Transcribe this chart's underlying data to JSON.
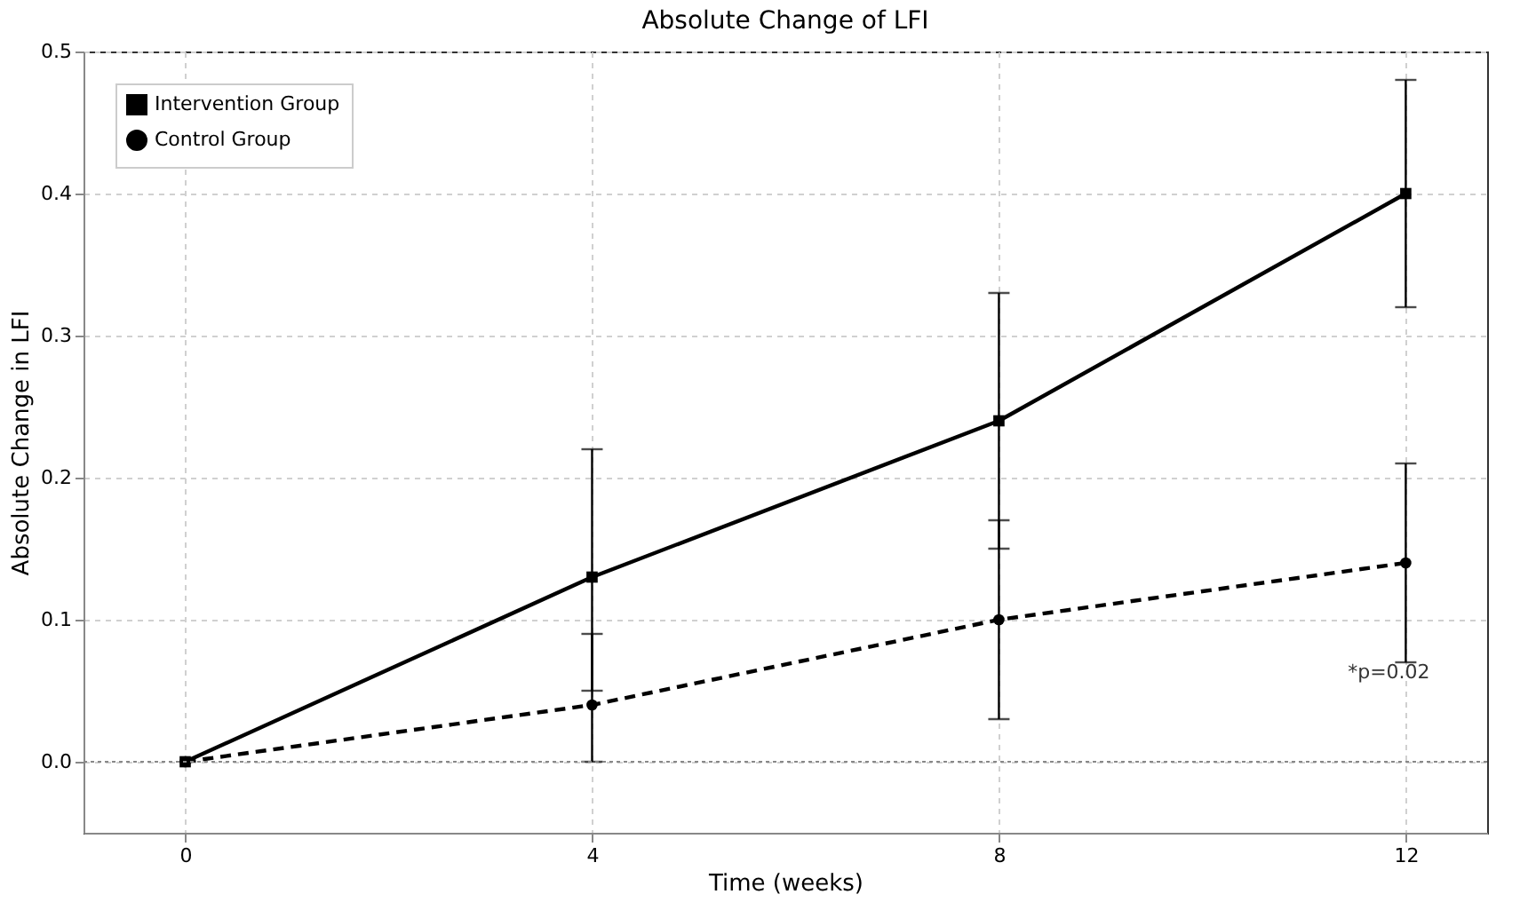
{
  "chart_data": {
    "type": "line",
    "title": "Absolute Change of LFI",
    "xlabel": "Time (weeks)",
    "ylabel": "Absolute Change in LFI",
    "x": [
      0,
      4,
      8,
      12
    ],
    "series": [
      {
        "name": "Intervention Group",
        "color": "#000000",
        "values": [
          0,
          0.13,
          0.24,
          0.4
        ],
        "errors": [
          null,
          [
            0.05,
            0.22
          ],
          [
            0.15,
            0.33
          ],
          [
            0.32,
            0.48
          ]
        ],
        "marker": "square",
        "line_style": "solid"
      },
      {
        "name": "Control Group",
        "color": "#000000",
        "values": [
          0,
          0.04,
          0.1,
          0.14
        ],
        "errors": [
          null,
          [
            0.0,
            0.09
          ],
          [
            0.03,
            0.17
          ],
          [
            0.07,
            0.21
          ]
        ],
        "marker": "circle",
        "line_style": "dashed"
      }
    ],
    "xlim": [
      -1,
      12.8
    ],
    "ylim": [
      -0.05,
      0.5
    ],
    "xticks": [
      0,
      4,
      8,
      12
    ],
    "yticks": [
      {
        "value": 0,
        "label": "0.0"
      },
      {
        "value": 0.1,
        "label": "0.1"
      },
      {
        "value": 0.2,
        "label": "0.2"
      },
      {
        "value": 0.3,
        "label": "0.3"
      },
      {
        "value": 0.4,
        "label": "0.4"
      },
      {
        "value": 0.5,
        "label": "0.5"
      }
    ],
    "ref_lines": [
      {
        "axis": "y",
        "value": 0,
        "color": "#888888",
        "line_style": "dotted"
      }
    ],
    "annotations": [
      "*p=0.02"
    ],
    "grid": true,
    "legend": "top left"
  }
}
